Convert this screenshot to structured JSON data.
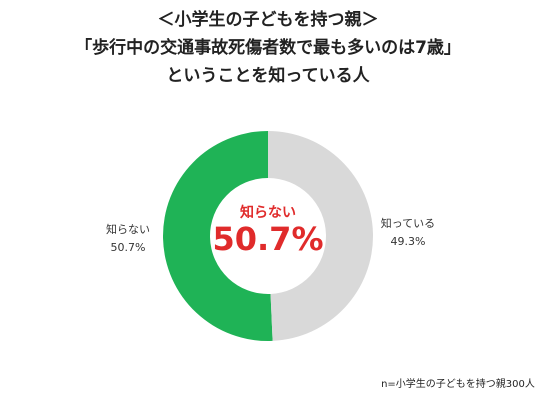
{
  "chart_data": {
    "type": "pie",
    "title": [
      "＜小学生の子どもを持つ親＞",
      "「歩行中の交通事故死傷者数で最も多いのは7歳」",
      "ということを知っている人"
    ],
    "categories": [
      "知らない",
      "知っている"
    ],
    "values": [
      50.7,
      49.3
    ],
    "value_labels": [
      "50.7%",
      "49.3%"
    ],
    "colors": [
      "#1fb356",
      "#d9d9d9"
    ],
    "direction": "counterclockwise",
    "hole": true,
    "note": "n=小学生の子どもを持つ親300人"
  }
}
